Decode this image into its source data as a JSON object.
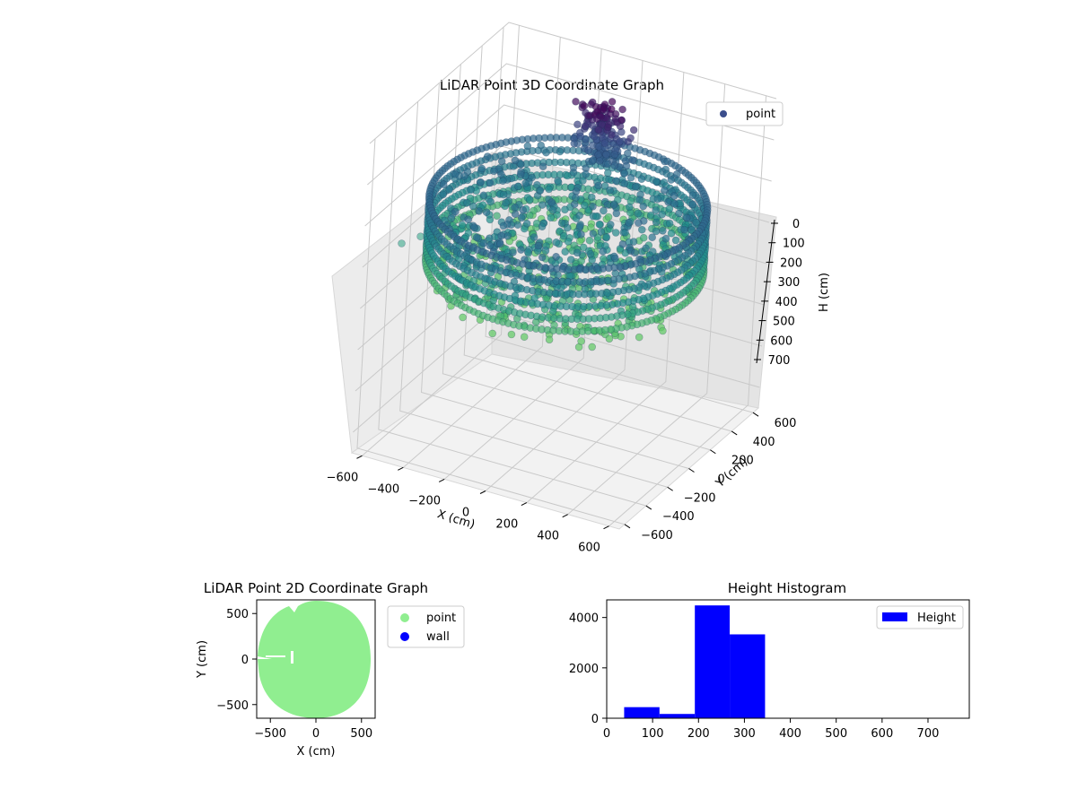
{
  "chart_data": [
    {
      "type": "scatter3d",
      "title": "LiDAR Point 3D Coordinate Graph",
      "xlabel": "X (cm)",
      "ylabel": "Y (cm)",
      "zlabel": "H (cm)",
      "legend": {
        "entries": [
          "point"
        ],
        "placement": "upper-right"
      },
      "xticks": [
        "−600",
        "−400",
        "−200",
        "0",
        "200",
        "400",
        "600"
      ],
      "yticks": [
        "−600",
        "−400",
        "−200",
        "0",
        "200",
        "400",
        "600"
      ],
      "zticks": [
        "0",
        "100",
        "200",
        "300",
        "400",
        "500",
        "600",
        "700"
      ],
      "xlim": [
        -650,
        650
      ],
      "ylim": [
        -650,
        650
      ],
      "zlim": [
        750,
        0
      ],
      "zaxis_inverted": true,
      "grid": true,
      "colormap": "viridis",
      "outline": {
        "shape": "circle",
        "radius_cm": 600,
        "wall_height_cm": [
          200,
          350
        ]
      },
      "outliers": [
        {
          "x": -640,
          "y": -300,
          "h": 320
        },
        {
          "x": -600,
          "y": -200,
          "h": 320
        }
      ]
    },
    {
      "type": "scatter",
      "title": "LiDAR Point 2D Coordinate Graph",
      "xlabel": "X (cm)",
      "ylabel": "Y (cm)",
      "xticks": [
        "−500",
        "0",
        "500"
      ],
      "yticks": [
        "500",
        "0",
        "−500"
      ],
      "xlim": [
        -650,
        650
      ],
      "ylim": [
        -650,
        650
      ],
      "series": [
        {
          "name": "point",
          "color": "#90ee90",
          "shape": "filled-disc",
          "center": [
            0,
            0
          ],
          "radius_cm": 610
        },
        {
          "name": "wall",
          "color": "#0000ff",
          "points": []
        }
      ],
      "legend": {
        "placement": "outside-right"
      },
      "grid": false
    },
    {
      "type": "bar",
      "title": "Height Histogram",
      "xlabel": "",
      "ylabel": "",
      "bins": [
        {
          "from": 38,
          "to": 115,
          "count": 440
        },
        {
          "from": 115,
          "to": 192,
          "count": 170
        },
        {
          "from": 192,
          "to": 268,
          "count": 4480
        },
        {
          "from": 268,
          "to": 345,
          "count": 3330
        },
        {
          "from": 345,
          "to": 422,
          "count": 0
        },
        {
          "from": 422,
          "to": 498,
          "count": 0
        },
        {
          "from": 498,
          "to": 575,
          "count": 0
        },
        {
          "from": 575,
          "to": 652,
          "count": 0
        },
        {
          "from": 652,
          "to": 728,
          "count": 0
        },
        {
          "from": 728,
          "to": 805,
          "count": 0
        }
      ],
      "color": "#0000ff",
      "xlim": [
        0,
        790
      ],
      "ylim": [
        0,
        4700
      ],
      "xticks": [
        "0",
        "100",
        "200",
        "300",
        "400",
        "500",
        "600",
        "700"
      ],
      "yticks": [
        "0",
        "2000",
        "4000"
      ],
      "series": [
        {
          "name": "Height"
        }
      ],
      "legend": {
        "placement": "upper-right"
      },
      "grid": false
    }
  ]
}
